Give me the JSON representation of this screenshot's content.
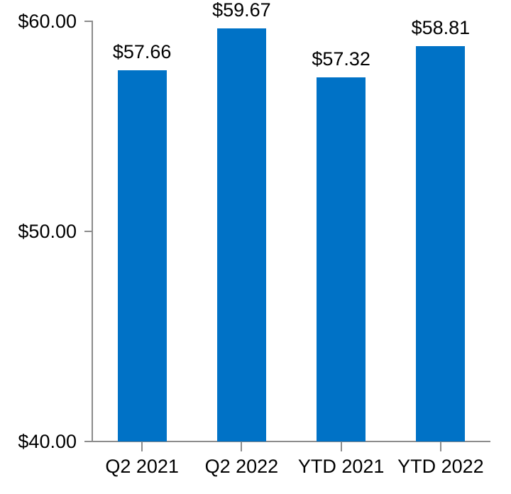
{
  "chart_data": {
    "type": "bar",
    "categories": [
      "Q2 2021",
      "Q2 2022",
      "YTD 2021",
      "YTD 2022"
    ],
    "values": [
      57.66,
      59.67,
      57.32,
      58.81
    ],
    "value_labels": [
      "$57.66",
      "$59.67",
      "$57.32",
      "$58.81"
    ],
    "title": "",
    "xlabel": "",
    "ylabel": "",
    "ylim": [
      40,
      60
    ],
    "yticks": [
      40,
      50,
      60
    ],
    "ytick_labels": [
      "$40.00",
      "$50.00",
      "$60.00"
    ],
    "grid": false,
    "legend": null,
    "bar_color": "#0072C6",
    "axis_color": "#8C8C8C",
    "label_color": "#000000"
  }
}
